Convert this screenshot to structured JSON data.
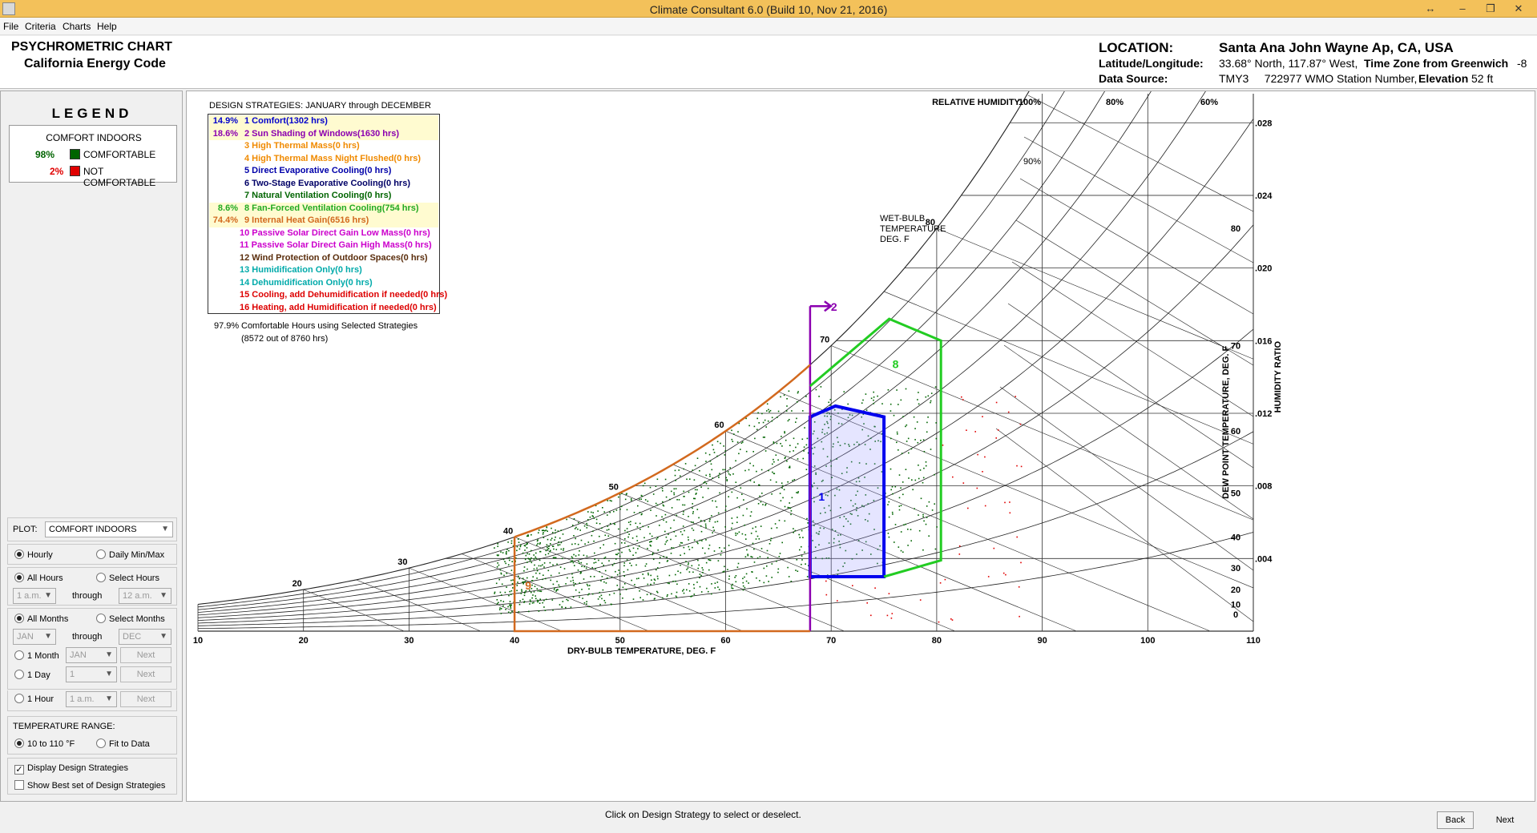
{
  "window": {
    "title": "Climate Consultant 6.0 (Build 10, Nov 21, 2016)"
  },
  "menu": [
    "File",
    "Criteria",
    "Charts",
    "Help"
  ],
  "header": {
    "chart_name": "PSYCHROMETRIC CHART",
    "code": "California Energy Code",
    "location_label": "LOCATION:",
    "location_value": "Santa Ana John Wayne Ap, CA, USA",
    "latlon_label": "Latitude/Longitude:",
    "latlon_value": "33.68° North, 117.87° West,",
    "tz_label": "Time Zone from Greenwich",
    "tz_value": "-8",
    "source_label": "Data Source:",
    "source_value": "TMY3     722977 WMO Station Number,",
    "elev_label": "Elevation",
    "elev_value": "52 ft"
  },
  "legend": {
    "title": "LEGEND",
    "heading": "COMFORT INDOORS",
    "comfortable_pct": "98%",
    "comfortable_label": "COMFORTABLE",
    "comfortable_color": "#006400",
    "not_pct": "2%",
    "not_label": "NOT COMFORTABLE",
    "not_color": "#e00000"
  },
  "controls": {
    "plot_label": "PLOT:",
    "plot_value": "COMFORT INDOORS",
    "hourly": "Hourly",
    "daily": "Daily Min/Max",
    "all_hours": "All Hours",
    "select_hours": "Select Hours",
    "hour_from": "1 a.m.",
    "through1": "through",
    "hour_to": "12 a.m.",
    "all_months": "All Months",
    "select_months": "Select Months",
    "month_from": "JAN",
    "through2": "through",
    "month_to": "DEC",
    "one_month": "1 Month",
    "one_month_val": "JAN",
    "one_day": "1 Day",
    "one_day_val": "1",
    "one_hour": "1 Hour",
    "one_hour_val": "1 a.m.",
    "next": "Next",
    "temp_range_label": "TEMPERATURE RANGE:",
    "range_10_110": "10 to 110 °F",
    "fit": "Fit to Data",
    "display_strategies": "Display Design Strategies",
    "show_best": "Show Best set of Design Strategies"
  },
  "strategies": {
    "heading": "DESIGN STRATEGIES:  JANUARY through DECEMBER",
    "items": [
      {
        "pct": "14.9%",
        "label": "1  Comfort(1302 hrs)",
        "color": "#0000cc",
        "hl": true
      },
      {
        "pct": "18.6%",
        "label": "2  Sun Shading of Windows(1630 hrs)",
        "color": "#8b00b0",
        "hl": true
      },
      {
        "pct": "",
        "label": "3  High Thermal Mass(0 hrs)",
        "color": "#f08a00",
        "hl": false
      },
      {
        "pct": "",
        "label": "4  High Thermal Mass Night Flushed(0 hrs)",
        "color": "#f08a00",
        "hl": false
      },
      {
        "pct": "",
        "label": "5  Direct Evaporative Cooling(0 hrs)",
        "color": "#0000aa",
        "hl": false
      },
      {
        "pct": "",
        "label": "6  Two-Stage Evaporative Cooling(0 hrs)",
        "color": "#000066",
        "hl": false
      },
      {
        "pct": "",
        "label": "7  Natural Ventilation Cooling(0 hrs)",
        "color": "#006400",
        "hl": false
      },
      {
        "pct": "8.6%",
        "label": "8  Fan-Forced Ventilation Cooling(754 hrs)",
        "color": "#22aa22",
        "hl": true
      },
      {
        "pct": "74.4%",
        "label": "9  Internal Heat Gain(6516 hrs)",
        "color": "#d2691e",
        "hl": true
      },
      {
        "pct": "",
        "label": "10  Passive Solar Direct Gain Low Mass(0 hrs)",
        "color": "#cc00cc",
        "hl": false
      },
      {
        "pct": "",
        "label": "11  Passive Solar Direct Gain High Mass(0 hrs)",
        "color": "#cc00cc",
        "hl": false
      },
      {
        "pct": "",
        "label": "12  Wind Protection of Outdoor Spaces(0 hrs)",
        "color": "#5a2d0c",
        "hl": false
      },
      {
        "pct": "",
        "label": "13  Humidification Only(0 hrs)",
        "color": "#00aaaa",
        "hl": false
      },
      {
        "pct": "",
        "label": "14  Dehumidification Only(0 hrs)",
        "color": "#00aaaa",
        "hl": false
      },
      {
        "pct": "",
        "label": "15  Cooling, add Dehumidification if needed(0 hrs)",
        "color": "#dd0000",
        "hl": false
      },
      {
        "pct": "",
        "label": "16  Heating, add Humidification if needed(0 hrs)",
        "color": "#dd0000",
        "hl": false
      }
    ],
    "summary_pct": "97.9%",
    "summary_line1": "Comfortable Hours using Selected Strategies",
    "summary_line2": "(8572 out of 8760 hrs)"
  },
  "chart_data": {
    "type": "scatter",
    "xlabel": "DRY-BULB TEMPERATURE, DEG. F",
    "x_ticks": [
      "10",
      "20",
      "30",
      "40",
      "50",
      "60",
      "70",
      "80",
      "90",
      "100",
      "110"
    ],
    "xlim": [
      10,
      110
    ],
    "ylabel": "HUMIDITY RATIO",
    "hr_ticks": [
      ".004",
      ".008",
      ".012",
      ".016",
      ".020",
      ".024",
      ".028"
    ],
    "ylim": [
      0,
      0.0296
    ],
    "dew_label": "DEW POINT TEMPERATURE, DEG. F",
    "dew_ticks": [
      "0",
      "10",
      "20",
      "30",
      "40",
      "50",
      "60",
      "70",
      "80"
    ],
    "rh_label": "RELATIVE HUMIDITY",
    "rh_ticks": [
      "100%",
      "80%",
      "60%",
      "90%"
    ],
    "wb_label": [
      "WET-BULB",
      "TEMPERATURE",
      "DEG. F"
    ],
    "wb_ticks": [
      "20",
      "30",
      "40",
      "50",
      "60",
      "70",
      "80"
    ],
    "zones": [
      {
        "name": "1",
        "color": "#0000ee",
        "points": [
          [
            68,
            0.003
          ],
          [
            75,
            0.003
          ],
          [
            75,
            0.0118
          ],
          [
            70.4,
            0.0124
          ],
          [
            68,
            0.0118
          ]
        ]
      },
      {
        "name": "2",
        "color": "#8b00b0",
        "points": [
          [
            68,
            0.0
          ],
          [
            68,
            0.0179
          ]
        ]
      },
      {
        "name": "8",
        "color": "#22cc22",
        "points": [
          [
            68,
            0.0135
          ],
          [
            75.5,
            0.0172
          ],
          [
            80.4,
            0.016
          ],
          [
            80.4,
            0.0039
          ],
          [
            75,
            0.003
          ]
        ]
      },
      {
        "name": "9",
        "color": "#d2691e",
        "points": [
          [
            40,
            0.0
          ],
          [
            40,
            0.0052
          ]
        ]
      }
    ],
    "series": [
      {
        "name": "COMFORTABLE",
        "color": "#006400"
      },
      {
        "name": "NOT COMFORTABLE",
        "color": "#e00000"
      }
    ]
  },
  "footer": {
    "hint": "Click on Design Strategy to select or deselect.",
    "back": "Back",
    "next": "Next"
  }
}
